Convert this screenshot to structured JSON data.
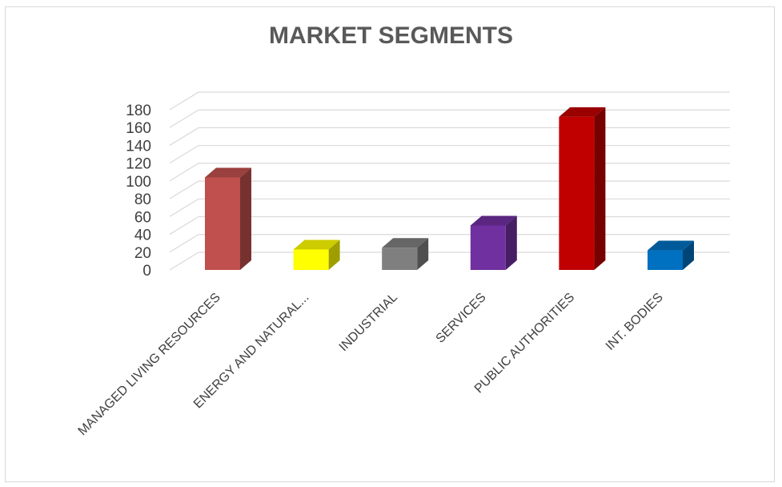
{
  "chart_data": {
    "type": "bar",
    "title": "MARKET SEGMENTS",
    "categories": [
      "MANAGED LIVING RESOURCES",
      "ENERGY AND NATURAL...",
      "INDUSTRIAL",
      "SERVICES",
      "PUBLIC AUTHORITIES",
      "INT. BODIES"
    ],
    "values": [
      104,
      23,
      25,
      50,
      172,
      22
    ],
    "colors": [
      "#c0504d",
      "#ffff00",
      "#7f7f7f",
      "#7030a0",
      "#c00000",
      "#0070c0"
    ],
    "yticks": [
      0,
      20,
      40,
      60,
      80,
      100,
      120,
      140,
      160,
      180
    ],
    "ylim": [
      0,
      180
    ],
    "grid": true,
    "legend": "none",
    "style": "3d-column"
  }
}
